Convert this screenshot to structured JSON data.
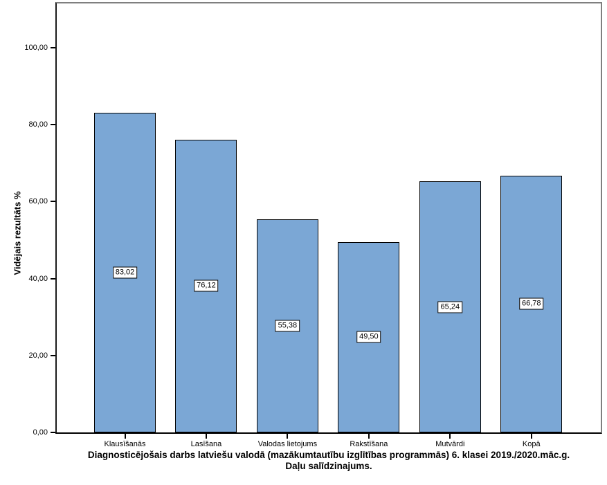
{
  "chart_data": {
    "type": "bar",
    "title_lines": [
      "Diagnosticējošais darbs latviešu valodā (mazākumtautību izglītības programmās) 6. klasei 2019./2020.māc.g.",
      "Daļu salīdzinajums."
    ],
    "ylabel": "Vidējais rezultāts %",
    "xlabel": "",
    "categories": [
      "Klausīšanās",
      "Lasīšana",
      "Valodas lietojums",
      "Rakstīšana",
      "Mutvārdi",
      "Kopā"
    ],
    "values": [
      83.02,
      76.12,
      55.38,
      49.5,
      65.24,
      66.78
    ],
    "value_labels": [
      "83,02",
      "76,12",
      "55,38",
      "49,50",
      "65,24",
      "66,78"
    ],
    "y_tick_values": [
      0,
      20,
      40,
      60,
      80,
      100
    ],
    "y_tick_labels": [
      "0,00",
      "20,00",
      "40,00",
      "60,00",
      "80,00",
      "100,00"
    ],
    "ylim": [
      0,
      111.5
    ],
    "grid": false,
    "legend": "none",
    "colors": {
      "bar_fill": "#7BA7D5",
      "bar_stroke": "#000000",
      "axis": "#000000",
      "frame": "#7f7f7f",
      "background": "#ffffff"
    }
  }
}
